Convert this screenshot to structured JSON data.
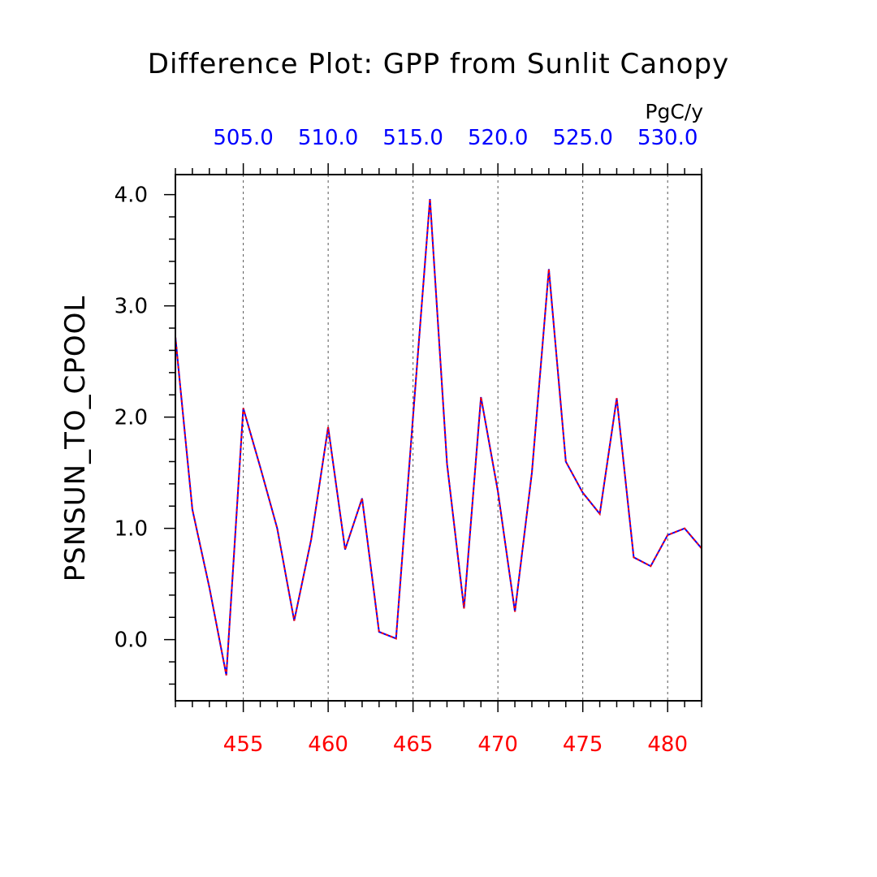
{
  "chart_data": {
    "type": "line",
    "title": "Difference Plot: GPP from Sunlit Canopy",
    "units": "PgC/y",
    "ylabel": "PSNSUN_TO_CPOOL",
    "xlabel": "",
    "xlim": [
      451,
      482
    ],
    "ylim": [
      -0.55,
      4.18
    ],
    "grid": "vertical-dashed",
    "y_ticks": [
      "4.0",
      "3.0",
      "2.0",
      "1.0",
      "0.0"
    ],
    "x_ticks_bottom": [
      "455",
      "460",
      "465",
      "470",
      "475",
      "480"
    ],
    "x_ticks_top": [
      "505.0",
      "510.0",
      "515.0",
      "520.0",
      "525.0",
      "530.0"
    ],
    "colors": {
      "series_1": "#0000ff",
      "series_2": "#ff0000",
      "bottom_ticks": "#ff0000",
      "top_ticks": "#0000ff",
      "grid": "#555555"
    },
    "x": [
      451,
      452,
      453,
      454,
      455,
      456,
      457,
      458,
      459,
      460,
      461,
      462,
      463,
      464,
      465,
      466,
      467,
      468,
      469,
      470,
      471,
      472,
      473,
      474,
      475,
      476,
      477,
      478,
      479,
      480,
      481,
      482
    ],
    "series": [
      {
        "values": [
          2.72,
          1.17,
          0.47,
          -0.32,
          2.08,
          1.55,
          1.0,
          0.17,
          0.9,
          1.91,
          0.81,
          1.27,
          0.07,
          0.01,
          2.0,
          3.96,
          1.58,
          0.28,
          2.18,
          1.33,
          0.25,
          1.5,
          3.33,
          1.6,
          1.32,
          1.13,
          2.17,
          0.74,
          0.66,
          0.94,
          1.0,
          0.82
        ]
      },
      {
        "values": [
          2.72,
          1.17,
          0.47,
          -0.32,
          2.08,
          1.55,
          1.0,
          0.17,
          0.9,
          1.91,
          0.81,
          1.27,
          0.07,
          0.01,
          2.0,
          3.96,
          1.58,
          0.28,
          2.18,
          1.33,
          0.25,
          1.5,
          3.33,
          1.6,
          1.32,
          1.13,
          2.17,
          0.74,
          0.66,
          0.94,
          1.0,
          0.82
        ]
      }
    ]
  }
}
